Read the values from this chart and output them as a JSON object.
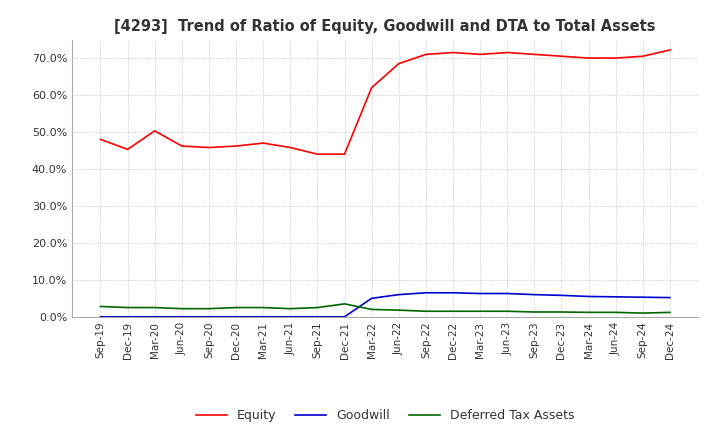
{
  "title": "[4293]  Trend of Ratio of Equity, Goodwill and DTA to Total Assets",
  "title_color": "#333333",
  "background_color": "#ffffff",
  "plot_background_color": "#ffffff",
  "grid_color": "#aaaaaa",
  "x_labels": [
    "Sep-19",
    "Dec-19",
    "Mar-20",
    "Jun-20",
    "Sep-20",
    "Dec-20",
    "Mar-21",
    "Jun-21",
    "Sep-21",
    "Dec-21",
    "Mar-22",
    "Jun-22",
    "Sep-22",
    "Dec-22",
    "Mar-23",
    "Jun-23",
    "Sep-23",
    "Dec-23",
    "Mar-24",
    "Jun-24",
    "Sep-24",
    "Dec-24"
  ],
  "equity": [
    0.48,
    0.453,
    0.503,
    0.462,
    0.458,
    0.462,
    0.47,
    0.458,
    0.44,
    0.44,
    0.62,
    0.685,
    0.71,
    0.715,
    0.71,
    0.715,
    0.71,
    0.705,
    0.7,
    0.7,
    0.705,
    0.722
  ],
  "goodwill": [
    0.0,
    0.0,
    0.0,
    0.0,
    0.0,
    0.0,
    0.0,
    0.0,
    0.0,
    0.0,
    0.05,
    0.06,
    0.065,
    0.065,
    0.063,
    0.063,
    0.06,
    0.058,
    0.055,
    0.054,
    0.053,
    0.052
  ],
  "dta": [
    0.028,
    0.025,
    0.025,
    0.022,
    0.022,
    0.025,
    0.025,
    0.022,
    0.025,
    0.035,
    0.02,
    0.018,
    0.015,
    0.015,
    0.015,
    0.015,
    0.013,
    0.013,
    0.012,
    0.012,
    0.01,
    0.012
  ],
  "equity_color": "#ff0000",
  "goodwill_color": "#0000cc",
  "dta_color": "#006600",
  "ylim": [
    0.0,
    0.75
  ],
  "yticks": [
    0.0,
    0.1,
    0.2,
    0.3,
    0.4,
    0.5,
    0.6,
    0.7
  ],
  "legend_labels": [
    "Equity",
    "Goodwill",
    "Deferred Tax Assets"
  ]
}
